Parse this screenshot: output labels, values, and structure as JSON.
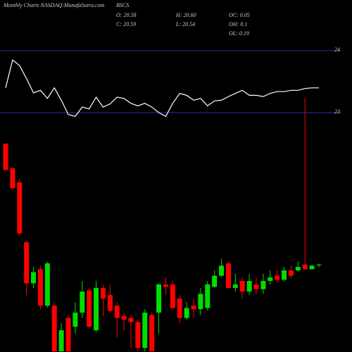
{
  "chart_data": [
    {
      "type": "candlestick",
      "title": "Monthly Charts NASDAQ:MunafaSutra.com",
      "symbol": "BSCS",
      "stats": [
        "O: 20.58",
        "H: 20.60",
        "OC: 0.05",
        "C: 20.59",
        "L: 20.54",
        "OH: 0.1",
        "OL: 0.19"
      ],
      "open": [
        22.65,
        22.23,
        21.99,
        20.97,
        20.27,
        20.51,
        19.89,
        19.89,
        19.11,
        19.68,
        19.53,
        19.77,
        20.15,
        19.47,
        20.19,
        20.07,
        19.89,
        19.71,
        19.68,
        19.61,
        19.17,
        19.73,
        19.77,
        20.25,
        20.25,
        20.01,
        19.68,
        19.89,
        19.83,
        19.85,
        20.21,
        20.4,
        20.61,
        20.19,
        20.31,
        20.13,
        20.25,
        20.17,
        20.31,
        20.4,
        20.33,
        20.49,
        20.49,
        20.59,
        20.51,
        20.58
      ],
      "high": [
        22.65,
        22.25,
        22.05,
        20.99,
        20.55,
        20.57,
        20.64,
        19.95,
        19.59,
        19.73,
        19.95,
        20.31,
        20.19,
        20.31,
        20.25,
        20.25,
        19.95,
        19.77,
        19.73,
        19.65,
        19.83,
        19.77,
        20.27,
        20.37,
        20.31,
        20.07,
        19.95,
        20.01,
        20.19,
        20.31,
        20.49,
        20.69,
        20.64,
        20.43,
        20.37,
        20.43,
        20.37,
        20.43,
        20.49,
        20.49,
        20.55,
        20.57,
        20.64,
        23.43,
        20.59,
        20.6
      ],
      "low": [
        22.2,
        21.87,
        21.09,
        20.07,
        20.19,
        19.83,
        19.86,
        19.11,
        19.11,
        19.11,
        19.41,
        19.68,
        19.51,
        19.44,
        19.71,
        19.77,
        19.35,
        19.47,
        19.17,
        19.11,
        19.11,
        19.11,
        19.41,
        20.07,
        19.83,
        19.59,
        19.65,
        19.68,
        19.73,
        19.8,
        20.19,
        20.37,
        20.17,
        20.13,
        20.01,
        20.07,
        20.09,
        20.09,
        20.25,
        20.28,
        20.31,
        20.35,
        20.47,
        20.5,
        20.5,
        20.54
      ],
      "close": [
        22.2,
        21.89,
        21.12,
        20.27,
        20.46,
        19.89,
        20.61,
        19.11,
        19.47,
        19.11,
        19.77,
        20.13,
        19.53,
        20.19,
        20.01,
        19.8,
        19.68,
        19.65,
        19.61,
        19.17,
        19.77,
        19.11,
        20.25,
        20.21,
        19.85,
        19.68,
        19.85,
        19.83,
        20.09,
        20.25,
        20.4,
        20.57,
        20.19,
        20.25,
        20.13,
        20.31,
        20.17,
        20.31,
        20.37,
        20.33,
        20.49,
        20.4,
        20.55,
        20.51,
        20.57,
        20.59
      ],
      "ylim": [
        19.1,
        24.4
      ],
      "up_color": "#00dd00",
      "down_color": "#ff0000"
    },
    {
      "type": "line",
      "values": [
        23.4,
        23.85,
        23.76,
        23.55,
        23.32,
        23.36,
        23.23,
        23.4,
        23.2,
        22.97,
        22.94,
        23.09,
        23.06,
        23.25,
        23.09,
        23.14,
        23.25,
        23.23,
        23.15,
        23.11,
        23.15,
        23.09,
        23.0,
        22.94,
        23.15,
        23.31,
        23.28,
        23.2,
        23.23,
        23.11,
        23.19,
        23.2,
        23.26,
        23.31,
        23.36,
        23.28,
        23.28,
        23.26,
        23.31,
        23.34,
        23.34,
        23.36,
        23.36,
        23.39,
        23.4,
        23.4
      ],
      "ylim": [
        22.0,
        24.5
      ],
      "yticks": [
        23,
        24
      ],
      "color": "#ffffff",
      "grid_color": "#2a2ab0"
    }
  ]
}
